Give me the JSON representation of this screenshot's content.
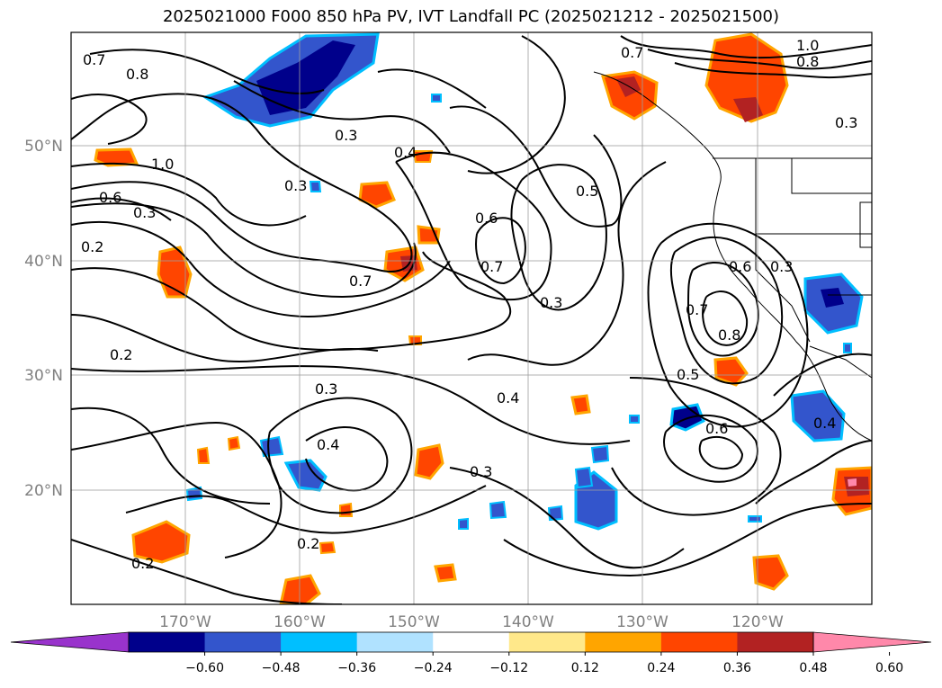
{
  "title": "2025021000 F000 850 hPa PV, IVT Landfall PC (2025021212 - 2025021500)",
  "lat_labels": [
    "50°N",
    "40°N",
    "30°N",
    "20°N"
  ],
  "lon_labels": [
    "170°W",
    "160°W",
    "150°W",
    "140°W",
    "130°W",
    "120°W"
  ],
  "contour_labels": [
    "0.7",
    "0.8",
    "1.0",
    "0.8",
    "0.7",
    "0.4",
    "1.0",
    "0.6",
    "0.3",
    "0.2",
    "0.2",
    "0.3",
    "0.3",
    "0.3",
    "0.7",
    "0.4",
    "0.5",
    "0.6",
    "0.7",
    "0.3",
    "0.6",
    "0.7",
    "0.8",
    "0.5",
    "0.6",
    "0.4",
    "0.3",
    "0.3",
    "0.4",
    "0.2",
    "0.2",
    "0.3"
  ],
  "colorbar": {
    "colors": [
      "#9933cc",
      "#00008b",
      "#3355cc",
      "#00bfff",
      "#b0e2ff",
      "#ffffff",
      "#ffe88a",
      "#ffa500",
      "#ff4500",
      "#b22222",
      "#ff88aa"
    ],
    "ticks": [
      "−0.60",
      "−0.48",
      "−0.36",
      "−0.24",
      "−0.12",
      "0.12",
      "0.24",
      "0.36",
      "0.48",
      "0.60"
    ]
  }
}
